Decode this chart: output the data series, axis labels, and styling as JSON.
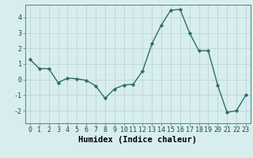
{
  "x": [
    0,
    1,
    2,
    3,
    4,
    5,
    6,
    7,
    8,
    9,
    10,
    11,
    12,
    13,
    14,
    15,
    16,
    17,
    18,
    19,
    20,
    21,
    22,
    23
  ],
  "y": [
    1.3,
    0.7,
    0.7,
    -0.2,
    0.1,
    0.05,
    -0.05,
    -0.4,
    -1.2,
    -0.6,
    -0.35,
    -0.3,
    0.55,
    2.3,
    3.5,
    4.45,
    4.5,
    3.0,
    1.85,
    1.85,
    -0.35,
    -2.1,
    -2.0,
    -1.0
  ],
  "line_color": "#2d6e6e",
  "marker": "D",
  "marker_size": 2.2,
  "bg_color": "#d8eeee",
  "grid_color": "#c0d4d4",
  "xlabel": "Humidex (Indice chaleur)",
  "xlabel_fontsize": 7.5,
  "ylim": [
    -2.8,
    4.8
  ],
  "yticks": [
    -2,
    -1,
    0,
    1,
    2,
    3,
    4
  ],
  "xticks": [
    0,
    1,
    2,
    3,
    4,
    5,
    6,
    7,
    8,
    9,
    10,
    11,
    12,
    13,
    14,
    15,
    16,
    17,
    18,
    19,
    20,
    21,
    22,
    23
  ],
  "tick_fontsize": 6,
  "line_width": 1.0
}
